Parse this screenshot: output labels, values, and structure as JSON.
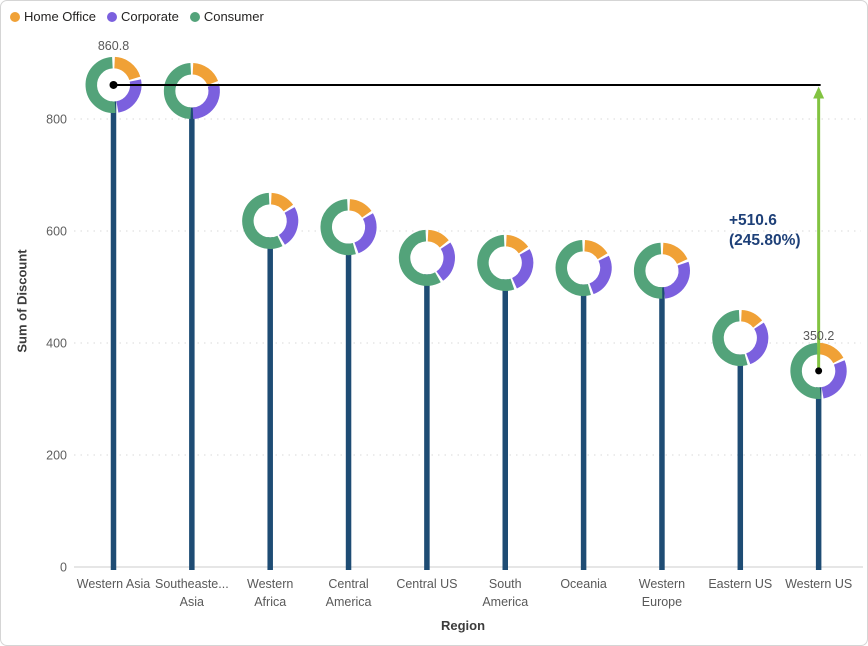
{
  "legend": {
    "items": [
      {
        "label": "Home Office",
        "color": "#F0A136"
      },
      {
        "label": "Corporate",
        "color": "#7B60DE"
      },
      {
        "label": "Consumer",
        "color": "#53A37A"
      }
    ]
  },
  "chart_data": {
    "type": "bar",
    "subtype": "lollipop-with-donut-markers",
    "title": "",
    "xlabel": "Region",
    "ylabel": "Sum of Discount",
    "ylim": [
      0,
      900
    ],
    "yticks": [
      0,
      200,
      400,
      600,
      800
    ],
    "grid": "dotted-horizontal",
    "legend_position": "top-left",
    "categories": [
      "Western Asia",
      "Southeastern Asia",
      "Western Africa",
      "Central America",
      "Central US",
      "South America",
      "Oceania",
      "Western Europe",
      "Eastern US",
      "Western US"
    ],
    "category_label_lines": [
      [
        "Western Asia"
      ],
      [
        "Southeaste...",
        "Asia"
      ],
      [
        "Western",
        "Africa"
      ],
      [
        "Central",
        "America"
      ],
      [
        "Central US"
      ],
      [
        "South",
        "America"
      ],
      [
        "Oceania"
      ],
      [
        "Western",
        "Europe"
      ],
      [
        "Eastern US"
      ],
      [
        "Western US"
      ]
    ],
    "values": [
      860.8,
      850,
      618,
      607,
      552,
      543,
      534,
      529,
      409,
      350.2
    ],
    "series": [
      {
        "name": "Home Office",
        "color": "#F0A136",
        "shares": [
          0.21,
          0.2,
          0.16,
          0.16,
          0.15,
          0.16,
          0.17,
          0.19,
          0.15,
          0.18
        ]
      },
      {
        "name": "Corporate",
        "color": "#7B60DE",
        "shares": [
          0.27,
          0.3,
          0.26,
          0.29,
          0.26,
          0.28,
          0.28,
          0.3,
          0.3,
          0.3
        ]
      },
      {
        "name": "Consumer",
        "color": "#53A37A",
        "shares": [
          0.52,
          0.5,
          0.58,
          0.55,
          0.59,
          0.56,
          0.55,
          0.51,
          0.55,
          0.52
        ]
      }
    ],
    "data_labels": {
      "max": "860.8",
      "min": "350.2"
    },
    "difference_annotation": {
      "line1": "+510.6",
      "line2": "(245.80%)",
      "text_color": "#1E4078",
      "arrow_color": "#82C341",
      "reference_line_color": "#000000"
    },
    "stem_color": "#1E4C74",
    "gridline_color": "#D9D9D9",
    "baseline_color": "#CDCDCD"
  }
}
